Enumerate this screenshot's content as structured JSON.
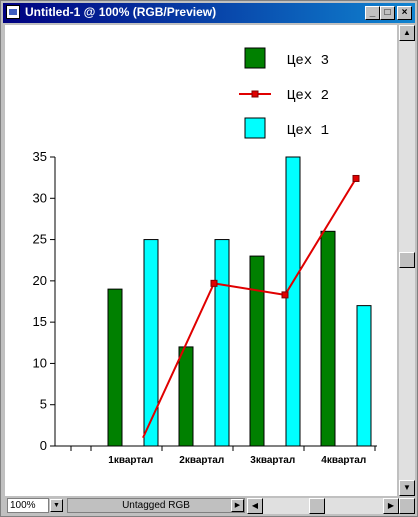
{
  "window": {
    "title": "Untitled-1 @ 100% (RGB/Preview)",
    "minimize_glyph": "_",
    "maximize_glyph": "□",
    "close_glyph": "×"
  },
  "statusbar": {
    "zoom": "100%",
    "profile": "Untagged RGB"
  },
  "colors": {
    "title_bar": "#000080",
    "series_3": "#008000",
    "series_2": "#e00000",
    "series_1": "#00ffff"
  },
  "chart_data": {
    "type": "bar",
    "categories": [
      "1квартал",
      "2квартал",
      "3квартал",
      "4квартал"
    ],
    "series": [
      {
        "name": "Цех 3",
        "kind": "bar",
        "values": [
          19,
          12,
          23,
          26
        ]
      },
      {
        "name": "Цех 2",
        "kind": "line",
        "values": [
          1,
          19.7,
          18.3,
          32.4
        ]
      },
      {
        "name": "Цех 1",
        "kind": "bar",
        "values": [
          25,
          25,
          35,
          17
        ]
      }
    ],
    "y_ticks": [
      "0",
      "5",
      "10",
      "15",
      "20",
      "25",
      "30",
      "35"
    ],
    "ylim": [
      0,
      35
    ],
    "legend_position": "top-right",
    "grid": false
  }
}
